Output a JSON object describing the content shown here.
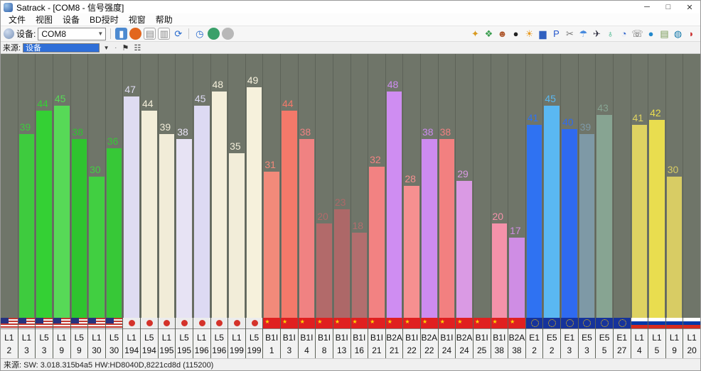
{
  "window": {
    "title": "Satrack - [COM8 - 信号强度]",
    "controls": {
      "minimize": "─",
      "maximize": "□",
      "close": "✕"
    }
  },
  "menu": [
    "文件",
    "视图",
    "设备",
    "BD授时",
    "视窗",
    "帮助"
  ],
  "toolbar": {
    "device_label": "设备:",
    "device_value": "COM8",
    "left_icons": [
      {
        "name": "connect-icon",
        "glyph": "▮",
        "color": "#ffffff",
        "bg": "#4d8ad0"
      },
      {
        "name": "record-icon",
        "glyph": "",
        "color": "",
        "bg": "#e2661e",
        "round": true
      },
      {
        "name": "log-file-icon",
        "glyph": "▤",
        "color": "#8a8a8a",
        "bg": "#fafafa",
        "border": true
      },
      {
        "name": "copy-file-icon",
        "glyph": "▥",
        "color": "#8a8a8a",
        "bg": "#fafafa",
        "border": true
      },
      {
        "name": "refresh-icon",
        "glyph": "⟳",
        "color": "#2266cc"
      },
      {
        "name": "toolbar-separator",
        "sep": true
      },
      {
        "name": "clock-icon",
        "glyph": "◷",
        "color": "#2266cc"
      },
      {
        "name": "globe-icon",
        "glyph": "",
        "color": "",
        "bg": "#3aa06a",
        "round": true
      },
      {
        "name": "globe-disabled-icon",
        "glyph": "",
        "color": "",
        "bg": "#b8b8b8",
        "round": true
      }
    ],
    "right_icons": [
      {
        "name": "compass-icon",
        "glyph": "✦",
        "color": "#d99a20"
      },
      {
        "name": "map-icon",
        "glyph": "❖",
        "color": "#3a9d4f"
      },
      {
        "name": "user-icon",
        "glyph": "☻",
        "color": "#b05a30"
      },
      {
        "name": "dark-globe-icon",
        "glyph": "●",
        "color": "#222222"
      },
      {
        "name": "sun-gear-icon",
        "glyph": "☀",
        "color": "#e89a20"
      },
      {
        "name": "signal-chart-icon",
        "glyph": "▆",
        "color": "#3060c0"
      },
      {
        "name": "parking-icon",
        "glyph": "P",
        "color": "#2255cc"
      },
      {
        "name": "tools-icon",
        "glyph": "✂",
        "color": "#777777"
      },
      {
        "name": "umbrella-icon",
        "glyph": "☂",
        "color": "#4488dd"
      },
      {
        "name": "plane-icon",
        "glyph": "✈",
        "color": "#333344"
      },
      {
        "name": "world-icon",
        "glyph": "♁",
        "color": "#22aa77"
      },
      {
        "name": "clock-small-icon",
        "glyph": "◔",
        "color": "#3366cc"
      },
      {
        "name": "phone-icon",
        "glyph": "☏",
        "color": "#555555"
      },
      {
        "name": "blue-ball-icon",
        "glyph": "●",
        "color": "#2288cc"
      },
      {
        "name": "notebook-icon",
        "glyph": "▤",
        "color": "#779955"
      },
      {
        "name": "globe2-icon",
        "glyph": "◍",
        "color": "#1177aa"
      },
      {
        "name": "alert-icon",
        "glyph": "◗",
        "color": "#cc3333"
      }
    ]
  },
  "source_bar": {
    "label": "来源:",
    "value": "设备",
    "dropdown_glyph": "▼",
    "icons": [
      {
        "name": "flag-marker-icon",
        "glyph": "⚑"
      },
      {
        "name": "layout-icon",
        "glyph": "☷"
      }
    ]
  },
  "status_bar": {
    "text": "来源: SW: 3.018.315b4a5  HW:HD8040D,8221cd8d  (115200)"
  },
  "chart_data": {
    "type": "bar",
    "title": "COM8 - 信号强度",
    "ylabel": "",
    "xlabel": "",
    "ylim": [
      0,
      56
    ],
    "grid": false,
    "legend": "none (flags per column)",
    "bars": [
      {
        "signal": "L1",
        "prn": "2",
        "value": null,
        "color": "#3ecb3e",
        "flag": "us"
      },
      {
        "signal": "L1",
        "prn": "3",
        "value": 39,
        "color": "#3ecb3e",
        "flag": "us"
      },
      {
        "signal": "L5",
        "prn": "3",
        "value": 44,
        "color": "#34d034",
        "flag": "us"
      },
      {
        "signal": "L1",
        "prn": "9",
        "value": 45,
        "color": "#57d957",
        "flag": "us"
      },
      {
        "signal": "L5",
        "prn": "9",
        "value": 38,
        "color": "#2fc42f",
        "flag": "us"
      },
      {
        "signal": "L1",
        "prn": "30",
        "value": 30,
        "color": "#41cf41",
        "flag": "us"
      },
      {
        "signal": "L5",
        "prn": "30",
        "value": 36,
        "color": "#37c837",
        "flag": "us"
      },
      {
        "signal": "L1",
        "prn": "194",
        "value": 47,
        "color": "#dfdcf2",
        "flag": "jp"
      },
      {
        "signal": "L5",
        "prn": "194",
        "value": 44,
        "color": "#f3eed9",
        "flag": "jp"
      },
      {
        "signal": "L1",
        "prn": "195",
        "value": 39,
        "color": "#f1ecd8",
        "flag": "jp"
      },
      {
        "signal": "L5",
        "prn": "195",
        "value": 38,
        "color": "#e7e3f4",
        "flag": "jp"
      },
      {
        "signal": "L1",
        "prn": "196",
        "value": 45,
        "color": "#dddaf3",
        "flag": "jp"
      },
      {
        "signal": "L5",
        "prn": "196",
        "value": 48,
        "color": "#f4efda",
        "flag": "jp"
      },
      {
        "signal": "L1",
        "prn": "199",
        "value": 35,
        "color": "#f2edd9",
        "flag": "jp"
      },
      {
        "signal": "L5",
        "prn": "199",
        "value": 49,
        "color": "#f6f1dc",
        "flag": "jp"
      },
      {
        "signal": "B1I",
        "prn": "1",
        "value": 31,
        "color": "#f28a7a",
        "flag": "cn"
      },
      {
        "signal": "B1I",
        "prn": "3",
        "value": 44,
        "color": "#f4796a",
        "flag": "cn"
      },
      {
        "signal": "B1I",
        "prn": "4",
        "value": 38,
        "color": "#f08282",
        "flag": "cn"
      },
      {
        "signal": "B1I",
        "prn": "8",
        "value": 20,
        "color": "#b26a6a",
        "flag": "cn"
      },
      {
        "signal": "B1I",
        "prn": "13",
        "value": 23,
        "color": "#ad6868",
        "flag": "cn"
      },
      {
        "signal": "B1I",
        "prn": "16",
        "value": 18,
        "color": "#b26e6e",
        "flag": "cn"
      },
      {
        "signal": "B1I",
        "prn": "21",
        "value": 32,
        "color": "#f28282",
        "flag": "cn"
      },
      {
        "signal": "B2A",
        "prn": "21",
        "value": 48,
        "color": "#cf8df2",
        "flag": "cn"
      },
      {
        "signal": "B1I",
        "prn": "22",
        "value": 28,
        "color": "#f69090",
        "flag": "cn"
      },
      {
        "signal": "B2A",
        "prn": "22",
        "value": 38,
        "color": "#cd8bf0",
        "flag": "cn"
      },
      {
        "signal": "B1I",
        "prn": "24",
        "value": 38,
        "color": "#f28080",
        "flag": "cn"
      },
      {
        "signal": "B2A",
        "prn": "24",
        "value": 29,
        "color": "#da9ae4",
        "flag": "cn"
      },
      {
        "signal": "B1I",
        "prn": "25",
        "value": null,
        "color": "#f28080",
        "flag": "cn"
      },
      {
        "signal": "B1I",
        "prn": "38",
        "value": 20,
        "color": "#f492aa",
        "flag": "cn"
      },
      {
        "signal": "B2A",
        "prn": "38",
        "value": 17,
        "color": "#cf8de4",
        "flag": "cn"
      },
      {
        "signal": "E1",
        "prn": "2",
        "value": 41,
        "color": "#2f72f2",
        "flag": "eu"
      },
      {
        "signal": "E5",
        "prn": "2",
        "value": 45,
        "color": "#5ab8f2",
        "flag": "eu"
      },
      {
        "signal": "E1",
        "prn": "3",
        "value": 40,
        "color": "#2f6af0",
        "flag": "eu"
      },
      {
        "signal": "E5",
        "prn": "3",
        "value": 39,
        "color": "#7e99a6",
        "flag": "eu"
      },
      {
        "signal": "E5",
        "prn": "5",
        "value": 43,
        "color": "#87a492",
        "flag": "eu"
      },
      {
        "signal": "E1",
        "prn": "27",
        "value": null,
        "color": "#2f6af0",
        "flag": "eu"
      },
      {
        "signal": "L1",
        "prn": "4",
        "value": 41,
        "color": "#ded262",
        "flag": "ru"
      },
      {
        "signal": "L1",
        "prn": "5",
        "value": 42,
        "color": "#e9dd4f",
        "flag": "ru"
      },
      {
        "signal": "L1",
        "prn": "9",
        "value": 30,
        "color": "#d8cc64",
        "flag": "ru"
      },
      {
        "signal": "L1",
        "prn": "20",
        "value": null,
        "color": "#d8cc64",
        "flag": "ru"
      }
    ]
  }
}
